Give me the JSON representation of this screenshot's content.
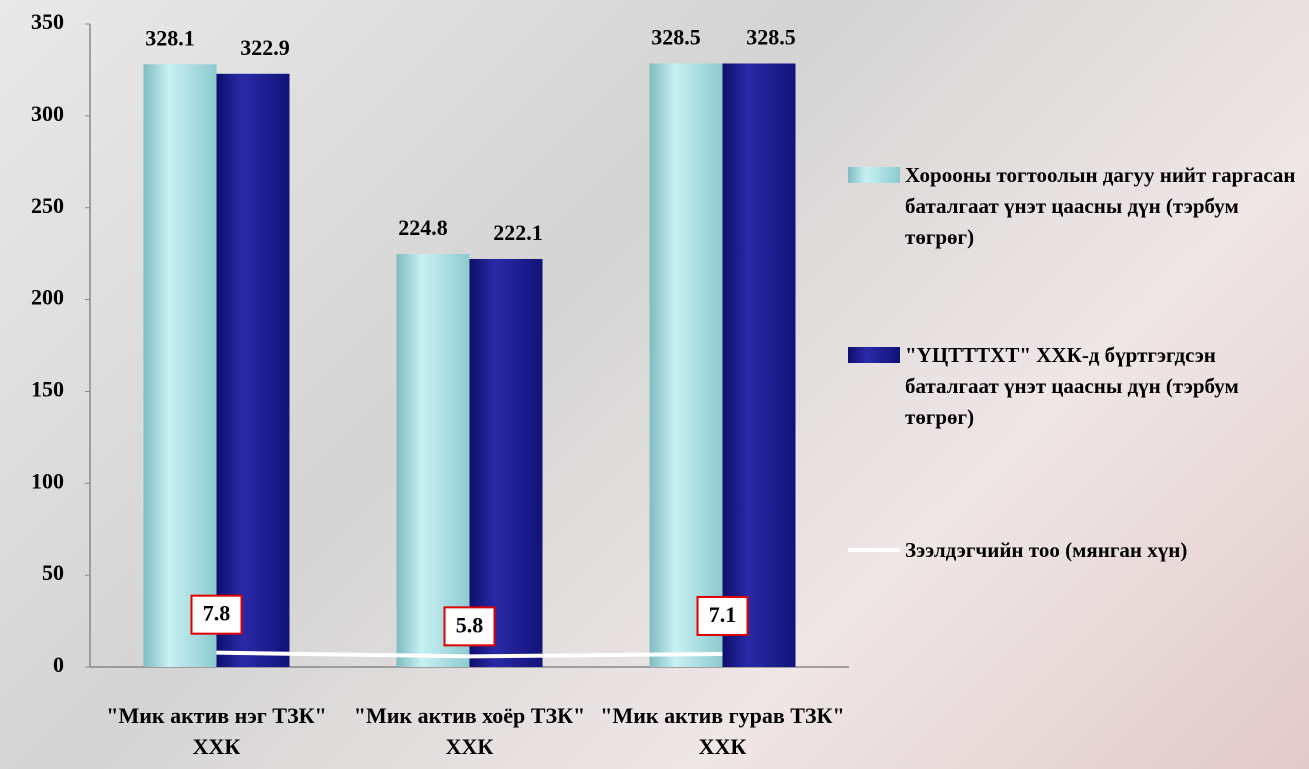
{
  "chart_data": {
    "type": "bar",
    "categories": [
      "\"Мик актив нэг ТЗК\" ХХК",
      "\"Мик актив хоёр ТЗК\" ХХК",
      "\"Мик актив гурав ТЗК\" ХХК"
    ],
    "series": [
      {
        "name": "Хорооны тогтоолын дагуу нийт гаргасан баталгаат үнэт цаасны дүн (тэрбум төгрөг)",
        "type": "bar",
        "color": "#a9dfe3",
        "values": [
          328.1,
          224.8,
          328.5
        ]
      },
      {
        "name": "\"ҮЦТТТХТ\" ХХК-д бүртгэгдсэн баталгаат үнэт цаасны дүн (тэрбум төгрөг)",
        "type": "bar",
        "color": "#1c1c8f",
        "values": [
          322.9,
          222.1,
          328.5
        ]
      },
      {
        "name": "Зээлдэгчийн тоо (мянган хүн)",
        "type": "line",
        "color": "#ffffff",
        "values": [
          7.8,
          5.8,
          7.1
        ]
      }
    ],
    "ylim": [
      0,
      350
    ],
    "yticks": [
      0,
      50,
      100,
      150,
      200,
      250,
      300,
      350
    ],
    "legend": "right"
  }
}
